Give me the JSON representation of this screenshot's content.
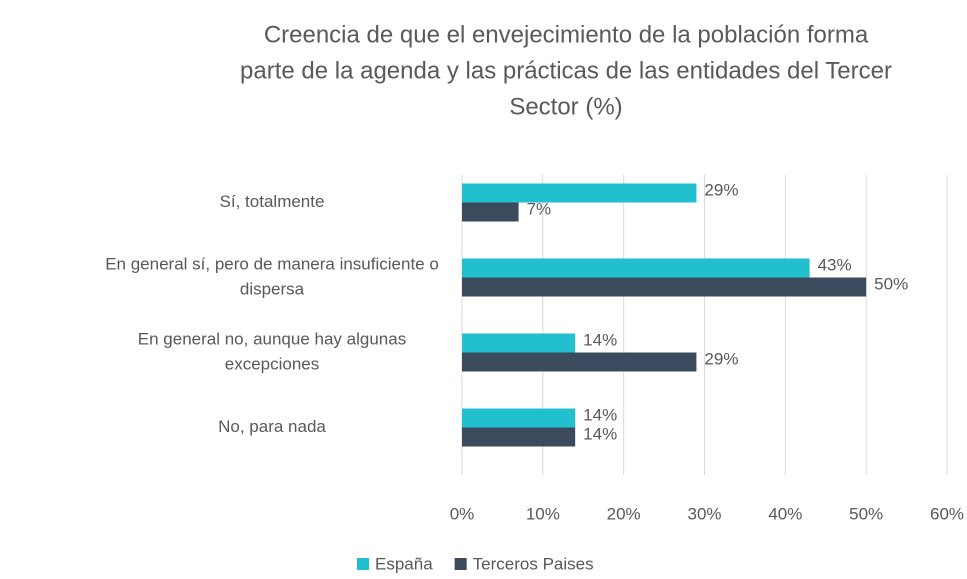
{
  "chart_data": {
    "type": "hbar",
    "title": [
      "Creencia de que el envejecimiento de la población forma",
      "parte de la agenda y las prácticas de las entidades del Tercer",
      "Sector (%)"
    ],
    "categories": [
      [
        "Sí, totalmente"
      ],
      [
        "En general sí, pero de manera insuficiente o",
        "dispersa"
      ],
      [
        "En general no, aunque hay algunas",
        "excepciones"
      ],
      [
        "No, para nada"
      ]
    ],
    "series": [
      {
        "name": "España",
        "color": "#22bfcf",
        "values": [
          29,
          43,
          14,
          14
        ],
        "value_labels": [
          "29%",
          "43%",
          "14%",
          "14%"
        ]
      },
      {
        "name": "Terceros Paises",
        "color": "#3b4a5c",
        "values": [
          7,
          50,
          29,
          14
        ],
        "value_labels": [
          "7%",
          "50%",
          "29%",
          "14%"
        ]
      }
    ],
    "xlim": [
      0,
      60
    ],
    "xticks": [
      {
        "value": 0,
        "label": "0%"
      },
      {
        "value": 10,
        "label": "10%"
      },
      {
        "value": 20,
        "label": "20%"
      },
      {
        "value": 30,
        "label": "30%"
      },
      {
        "value": 40,
        "label": "40%"
      },
      {
        "value": 50,
        "label": "50%"
      },
      {
        "value": 60,
        "label": "60%"
      }
    ],
    "grid": true,
    "legend": "bottom"
  }
}
